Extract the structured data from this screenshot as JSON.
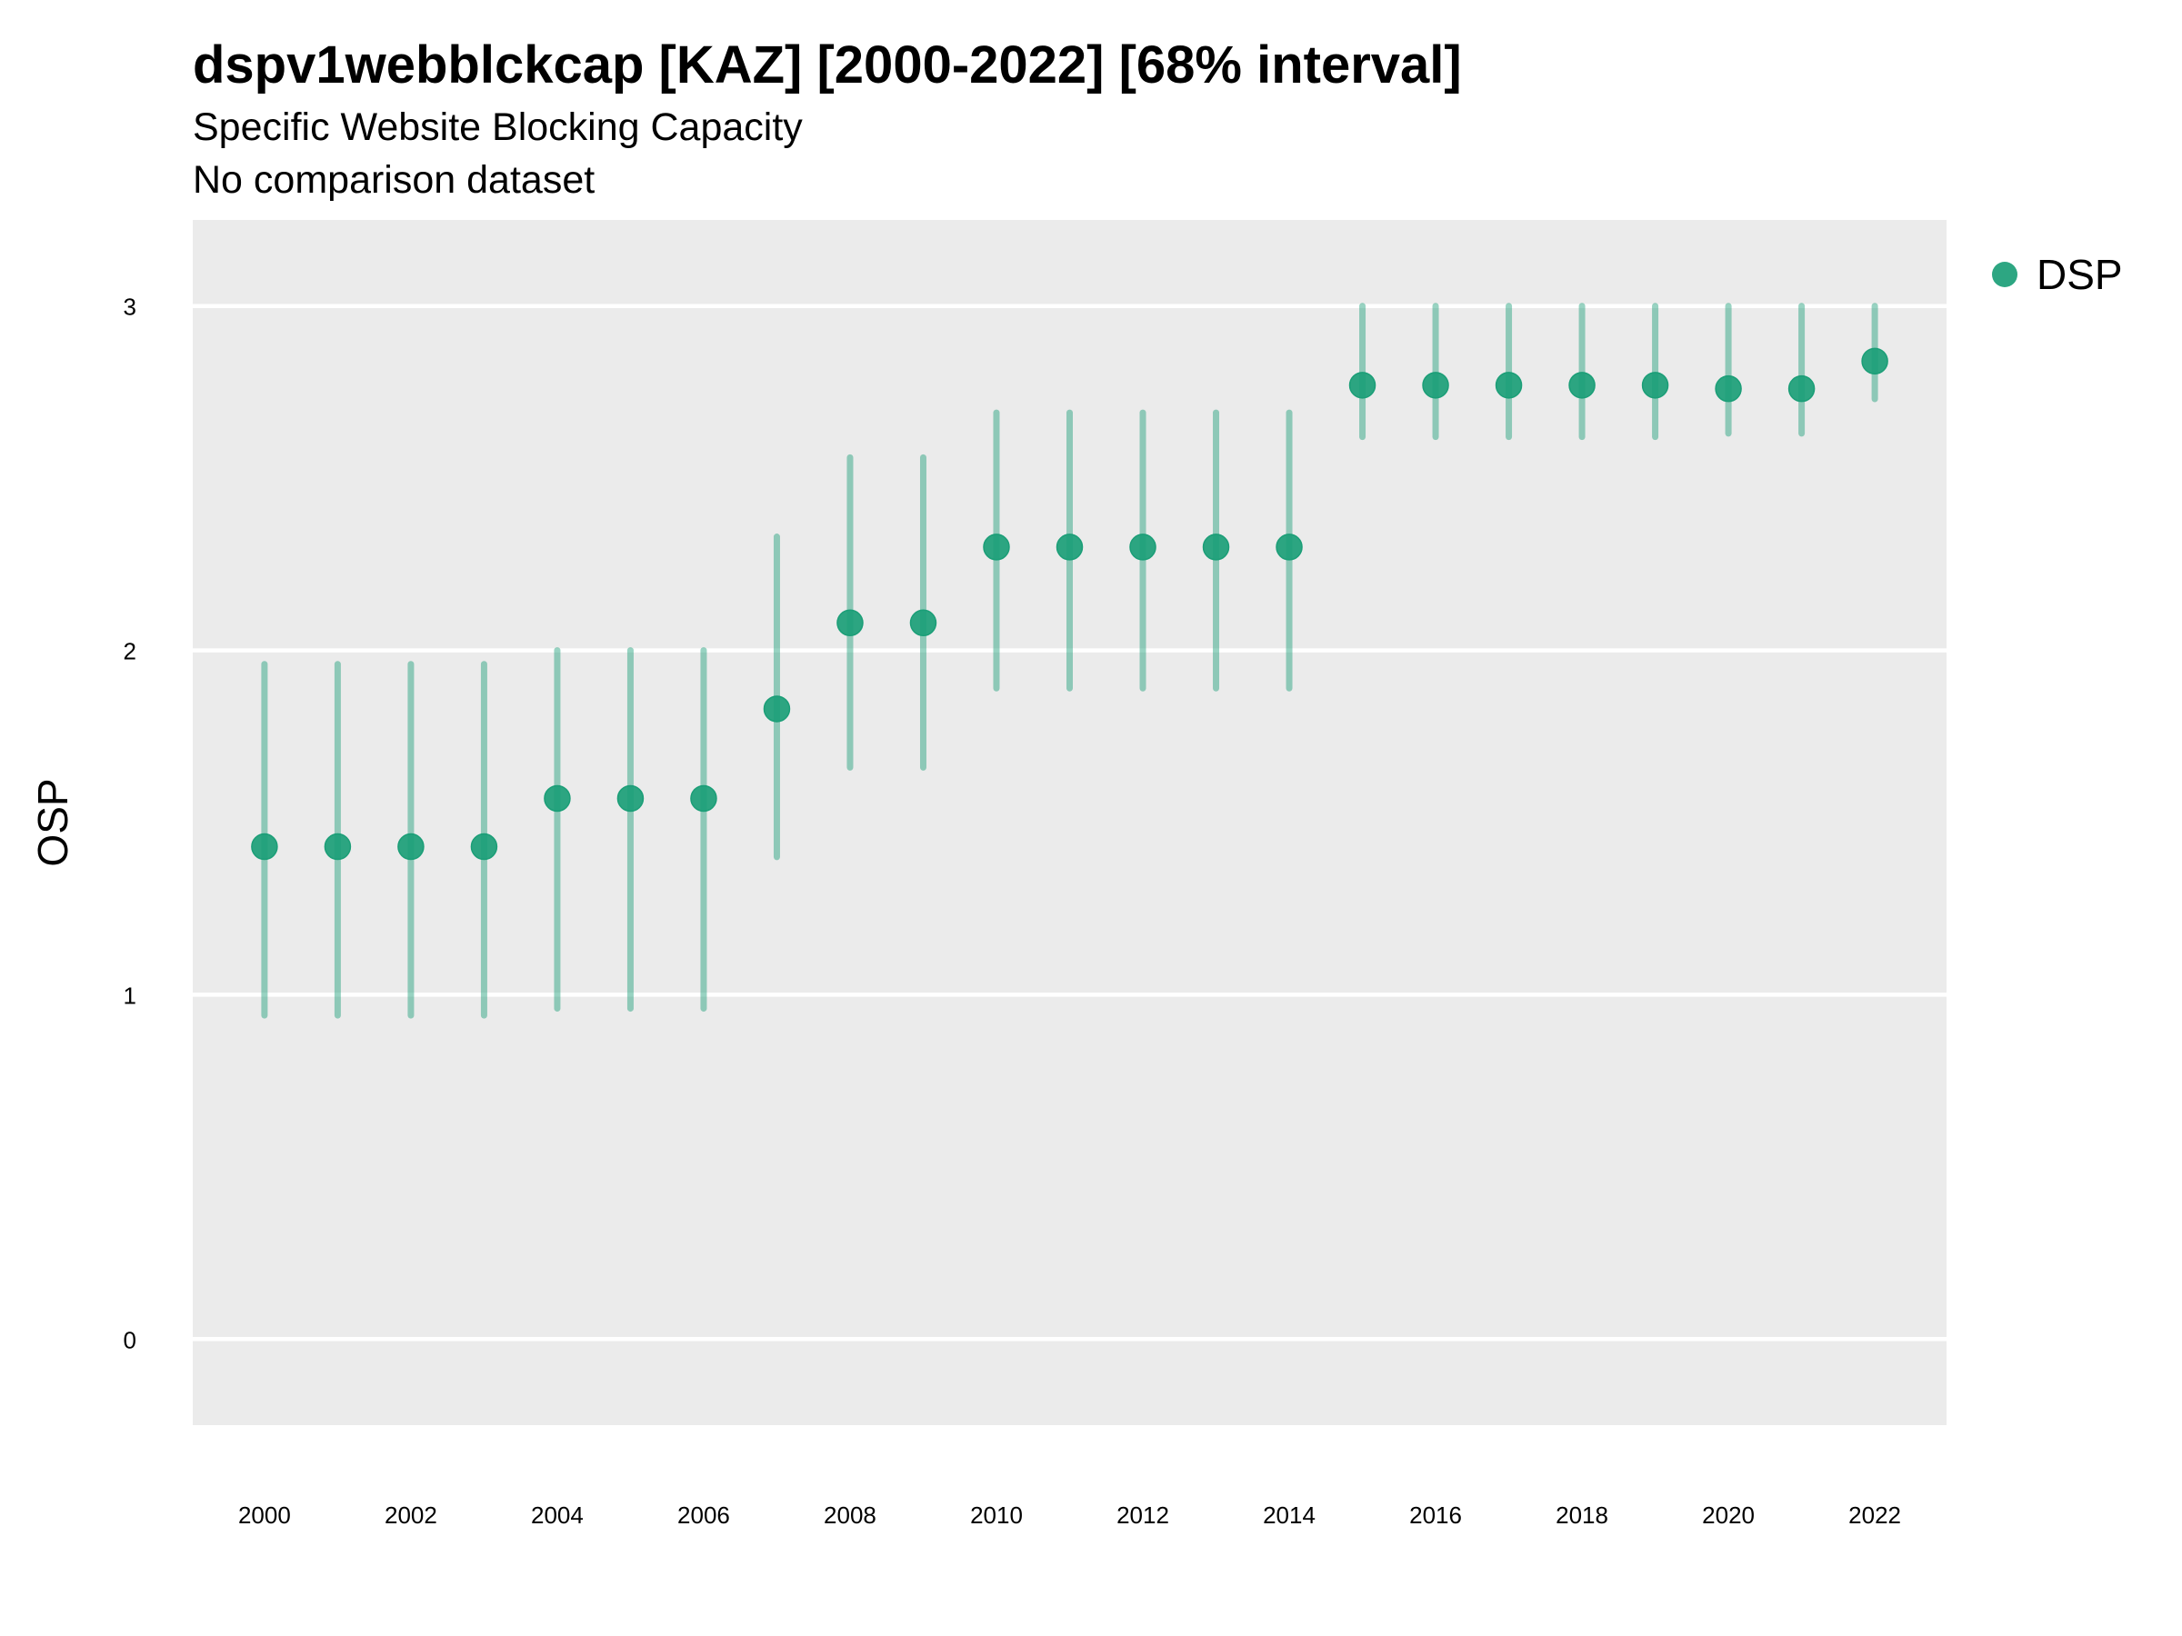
{
  "chart_data": {
    "type": "scatter",
    "title": "dspv1webblckcap [KAZ] [2000-2022] [68% interval]",
    "subtitle": "Specific Website Blocking Capacity",
    "subtitle2": "No comparison dataset",
    "xlabel": "",
    "ylabel": "OSP",
    "x": [
      2000,
      2001,
      2002,
      2003,
      2004,
      2005,
      2006,
      2007,
      2008,
      2009,
      2010,
      2011,
      2012,
      2013,
      2014,
      2015,
      2016,
      2017,
      2018,
      2019,
      2020,
      2021,
      2022
    ],
    "series": [
      {
        "name": "DSP",
        "color": "#1b9e77",
        "values": [
          1.43,
          1.43,
          1.43,
          1.43,
          1.57,
          1.57,
          1.57,
          1.83,
          2.08,
          2.08,
          2.3,
          2.3,
          2.3,
          2.3,
          2.3,
          2.77,
          2.77,
          2.77,
          2.77,
          2.77,
          2.76,
          2.76,
          2.84
        ],
        "lower": [
          0.94,
          0.94,
          0.94,
          0.94,
          0.96,
          0.96,
          0.96,
          1.4,
          1.66,
          1.66,
          1.89,
          1.89,
          1.89,
          1.89,
          1.89,
          2.62,
          2.62,
          2.62,
          2.62,
          2.62,
          2.63,
          2.63,
          2.73
        ],
        "upper": [
          1.96,
          1.96,
          1.96,
          1.96,
          2.0,
          2.0,
          2.0,
          2.33,
          2.56,
          2.56,
          2.69,
          2.69,
          2.69,
          2.69,
          2.69,
          3.0,
          3.0,
          3.0,
          3.0,
          3.0,
          3.0,
          3.0,
          3.0
        ]
      }
    ],
    "xticks": [
      "2000",
      "2002",
      "2004",
      "2006",
      "2008",
      "2010",
      "2012",
      "2014",
      "2016",
      "2018",
      "2020",
      "2022"
    ],
    "yticks": [
      "0",
      "1",
      "2",
      "3"
    ],
    "xlim": [
      1999.02,
      2022.98
    ],
    "ylim": [
      -0.25,
      3.25
    ],
    "grid": "horizontal major",
    "legend": "right"
  }
}
